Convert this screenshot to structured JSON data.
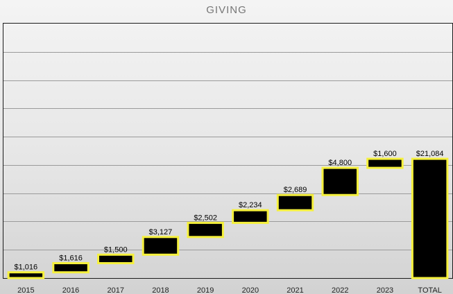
{
  "chart_data": {
    "type": "bar",
    "subtype": "waterfall",
    "title": "GIVING",
    "categories": [
      "2015",
      "2016",
      "2017",
      "2018",
      "2019",
      "2020",
      "2021",
      "2022",
      "2023",
      "TOTAL"
    ],
    "values": [
      1016,
      1616,
      1500,
      3127,
      2502,
      2234,
      2689,
      4800,
      1600,
      21084
    ],
    "value_labels": [
      "$1,016",
      "$1,616",
      "$1,500",
      "$3,127",
      "$2,502",
      "$2,234",
      "$2,689",
      "$4,800",
      "$1,600",
      "$21,084"
    ],
    "total_category": "TOTAL",
    "ylim": [
      0,
      45000
    ],
    "grid": true,
    "bar_fill": "#000000",
    "bar_border": "#f5f03c"
  }
}
